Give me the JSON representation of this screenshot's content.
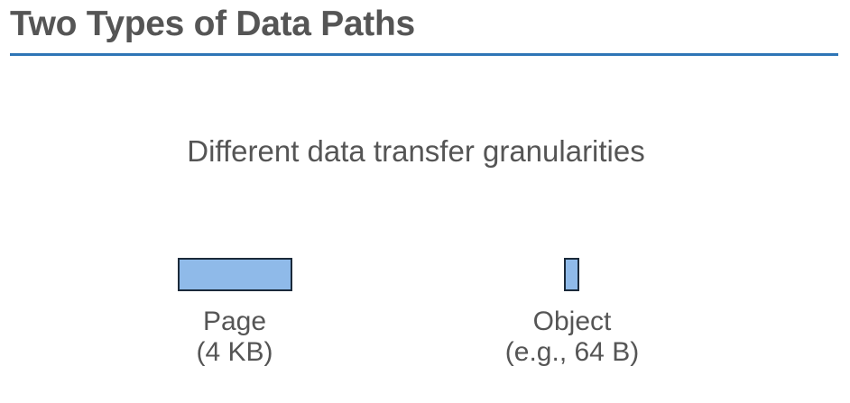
{
  "slide": {
    "title": "Two Types of Data Paths",
    "subtitle": "Different data transfer granularities"
  },
  "colors": {
    "title_rule": "#2e75b6",
    "block_fill": "#8fbae9",
    "block_border": "#1b2a3a",
    "text": "#555555"
  },
  "items": [
    {
      "name": "Page",
      "size": "(4 KB)"
    },
    {
      "name": "Object",
      "size": "(e.g., 64 B)"
    }
  ]
}
